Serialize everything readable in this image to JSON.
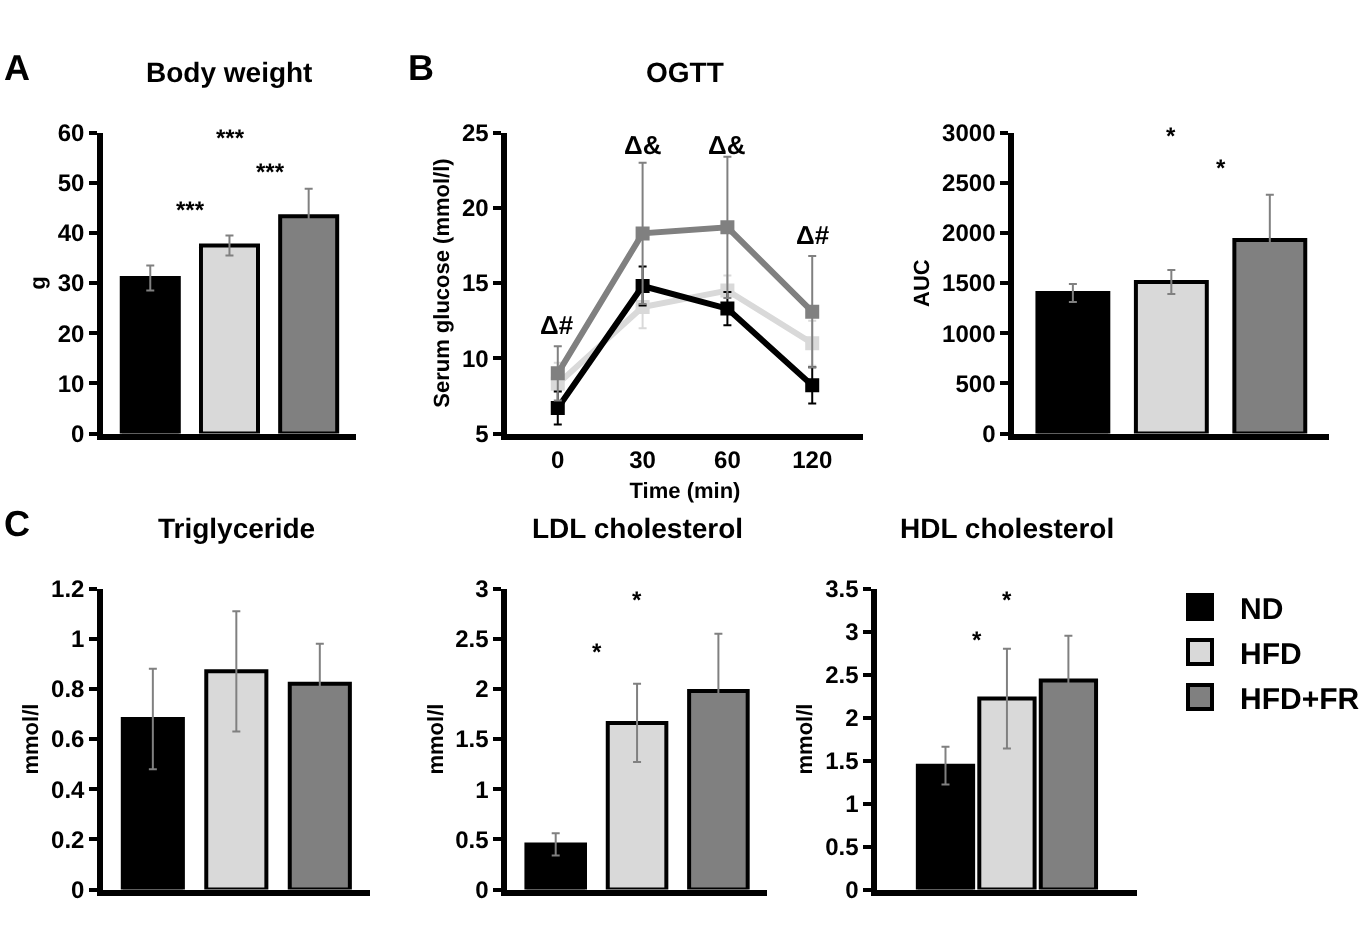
{
  "chart_data": [
    {
      "type": "bar",
      "title": "Body weight",
      "ylabel": "g",
      "categories": [
        null,
        null,
        null
      ],
      "values": [
        31,
        37.5,
        43.3
      ],
      "colors": [
        "#000000",
        "#d9d9d9",
        "#808080"
      ],
      "errors": [
        2.5,
        2,
        5.5
      ],
      "ylim": [
        0,
        60
      ],
      "yticks": [
        0,
        10,
        20,
        30,
        40,
        50,
        60
      ],
      "annotations": [
        "A",
        "***",
        "***",
        "***"
      ]
    },
    {
      "type": "line",
      "title": "OGTT",
      "xlabel": "Time (min)",
      "ylabel": "Serum glucose (mmol/l)",
      "categories": [
        "0",
        "30",
        "60",
        "120"
      ],
      "ylim": [
        5,
        25
      ],
      "yticks": [
        5,
        10,
        15,
        20,
        25
      ],
      "marker": "square",
      "series": [
        {
          "color": "#d9d9d9",
          "values": [
            8.3,
            13.4,
            14.5,
            11
          ],
          "errors": [
            1.4,
            1.4,
            1.0,
            1.5
          ]
        },
        {
          "color": "#000000",
          "values": [
            6.7,
            14.8,
            13.3,
            8.2
          ],
          "errors": [
            1.1,
            1.3,
            1.1,
            1.2
          ]
        },
        {
          "color": "#808080",
          "values": [
            9.0,
            18.3,
            18.7,
            13.1
          ],
          "errors": [
            1.8,
            4.7,
            4.7,
            3.7
          ]
        }
      ],
      "annotations": [
        "B",
        "Δ#",
        "Δ&",
        "Δ&",
        "Δ#"
      ]
    },
    {
      "type": "bar",
      "ylabel": "AUC",
      "categories": [
        null,
        null,
        null
      ],
      "values": [
        1400,
        1510,
        1930
      ],
      "colors": [
        "#000000",
        "#d9d9d9",
        "#808080"
      ],
      "errors": [
        90,
        120,
        450
      ],
      "ylim": [
        0,
        3000
      ],
      "yticks": [
        0,
        500,
        1000,
        1500,
        2000,
        2500,
        3000
      ],
      "annotations": [
        "*",
        "*"
      ]
    },
    {
      "type": "bar",
      "title": "Triglyceride",
      "ylabel": "mmol/l",
      "categories": [
        null,
        null,
        null
      ],
      "values": [
        0.68,
        0.87,
        0.82
      ],
      "colors": [
        "#000000",
        "#d9d9d9",
        "#808080"
      ],
      "errors": [
        0.2,
        0.24,
        0.16
      ],
      "ylim": [
        0,
        1.2
      ],
      "yticks": [
        0,
        0.2,
        0.4,
        0.6,
        0.8,
        1,
        1.2
      ],
      "annotations": [
        "C"
      ]
    },
    {
      "type": "bar",
      "title": "LDL cholesterol",
      "ylabel": "mmol/l",
      "categories": [
        null,
        null,
        null
      ],
      "values": [
        0.45,
        1.66,
        1.98
      ],
      "colors": [
        "#000000",
        "#d9d9d9",
        "#808080"
      ],
      "errors": [
        0.11,
        0.39,
        0.57
      ],
      "ylim": [
        0,
        3
      ],
      "yticks": [
        0,
        0.5,
        1,
        1.5,
        2,
        2.5,
        3
      ],
      "annotations": [
        "*",
        "*"
      ]
    },
    {
      "type": "bar",
      "title": "HDL cholesterol",
      "ylabel": "mmol/l",
      "categories": [
        null
      ],
      "ylim": [
        0,
        3.5
      ],
      "yticks": [
        0,
        0.5,
        1,
        1.5,
        2,
        2.5,
        3,
        3.5
      ],
      "legend": "right",
      "series": [
        {
          "name": "ND",
          "color": "#000000",
          "values": [
            1.44
          ],
          "errors": [
            0.22
          ]
        },
        {
          "name": "HFD",
          "color": "#d9d9d9",
          "values": [
            2.22
          ],
          "errors": [
            0.58
          ]
        },
        {
          "name": "HFD+FR",
          "color": "#808080",
          "values": [
            2.43
          ],
          "errors": [
            0.52
          ]
        }
      ],
      "annotations": [
        "*",
        "*"
      ]
    }
  ]
}
